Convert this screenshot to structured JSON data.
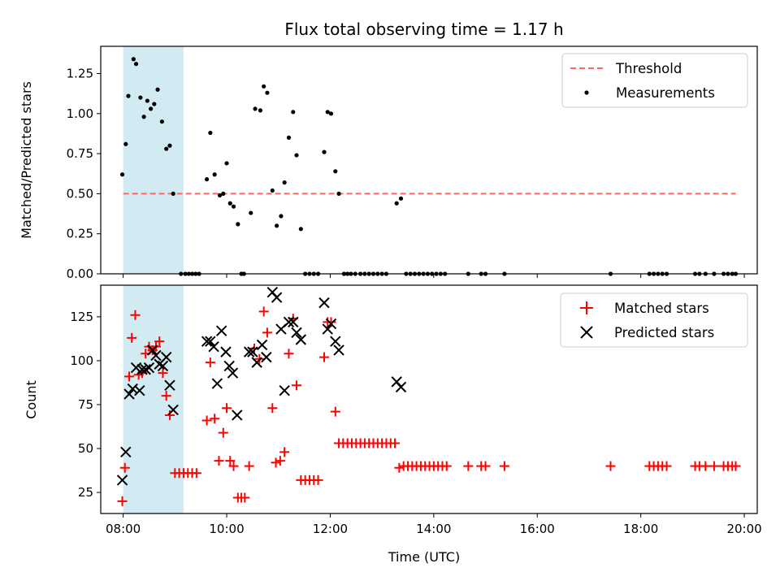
{
  "chart_data": [
    {
      "type": "scatter",
      "title": "Flux total observing time = 1.17 h",
      "xlabel": "",
      "ylabel": "Matched/Predicted stars",
      "xlim": [
        "07:34",
        "20:15"
      ],
      "ylim": [
        0,
        1.42
      ],
      "yticks": [
        "0.00",
        "0.25",
        "0.50",
        "0.75",
        "1.00",
        "1.25"
      ],
      "xticks": [
        "08:00",
        "10:00",
        "12:00",
        "14:00",
        "16:00",
        "18:00",
        "20:00"
      ],
      "grid": false,
      "legend_position": "top-right",
      "shaded_span": {
        "x": [
          "08:00",
          "09:10"
        ],
        "color": "#add8e6"
      },
      "threshold": {
        "name": "Threshold",
        "value": 0.5,
        "x": [
          "08:00",
          "19:50"
        ],
        "color": "#ff6666",
        "style": "dashed"
      },
      "series": [
        {
          "name": "Measurements",
          "color": "#000000",
          "marker": "dot",
          "points": [
            [
              "07:59",
              0.62
            ],
            [
              "08:03",
              0.81
            ],
            [
              "08:06",
              1.11
            ],
            [
              "08:12",
              1.34
            ],
            [
              "08:15",
              1.31
            ],
            [
              "08:20",
              1.1
            ],
            [
              "08:24",
              0.98
            ],
            [
              "08:28",
              1.08
            ],
            [
              "08:32",
              1.03
            ],
            [
              "08:36",
              1.06
            ],
            [
              "08:40",
              1.15
            ],
            [
              "08:45",
              0.95
            ],
            [
              "08:50",
              0.78
            ],
            [
              "08:54",
              0.8
            ],
            [
              "08:58",
              0.5
            ],
            [
              "09:07",
              0.0
            ],
            [
              "09:12",
              0.0
            ],
            [
              "09:16",
              0.0
            ],
            [
              "09:20",
              0.0
            ],
            [
              "09:24",
              0.0
            ],
            [
              "09:28",
              0.0
            ],
            [
              "09:37",
              0.59
            ],
            [
              "09:41",
              0.88
            ],
            [
              "09:46",
              0.62
            ],
            [
              "09:52",
              0.49
            ],
            [
              "09:56",
              0.5
            ],
            [
              "10:00",
              0.69
            ],
            [
              "10:04",
              0.44
            ],
            [
              "10:08",
              0.42
            ],
            [
              "10:13",
              0.31
            ],
            [
              "10:17",
              0.0
            ],
            [
              "10:20",
              0.0
            ],
            [
              "10:28",
              0.38
            ],
            [
              "10:33",
              1.03
            ],
            [
              "10:39",
              1.02
            ],
            [
              "10:43",
              1.17
            ],
            [
              "10:47",
              1.13
            ],
            [
              "10:53",
              0.52
            ],
            [
              "10:58",
              0.3
            ],
            [
              "11:03",
              0.36
            ],
            [
              "11:07",
              0.57
            ],
            [
              "11:12",
              0.85
            ],
            [
              "11:17",
              1.01
            ],
            [
              "11:21",
              0.74
            ],
            [
              "11:26",
              0.28
            ],
            [
              "11:31",
              0.0
            ],
            [
              "11:36",
              0.0
            ],
            [
              "11:41",
              0.0
            ],
            [
              "11:46",
              0.0
            ],
            [
              "11:53",
              0.76
            ],
            [
              "11:57",
              1.01
            ],
            [
              "12:01",
              1.0
            ],
            [
              "12:06",
              0.64
            ],
            [
              "12:10",
              0.5
            ],
            [
              "12:16",
              0.0
            ],
            [
              "12:20",
              0.0
            ],
            [
              "12:24",
              0.0
            ],
            [
              "12:29",
              0.0
            ],
            [
              "12:35",
              0.0
            ],
            [
              "12:40",
              0.0
            ],
            [
              "12:45",
              0.0
            ],
            [
              "12:50",
              0.0
            ],
            [
              "12:55",
              0.0
            ],
            [
              "13:00",
              0.0
            ],
            [
              "13:05",
              0.0
            ],
            [
              "13:17",
              0.44
            ],
            [
              "13:22",
              0.47
            ],
            [
              "13:28",
              0.0
            ],
            [
              "13:33",
              0.0
            ],
            [
              "13:38",
              0.0
            ],
            [
              "13:43",
              0.0
            ],
            [
              "13:48",
              0.0
            ],
            [
              "13:53",
              0.0
            ],
            [
              "13:58",
              0.0
            ],
            [
              "14:03",
              0.0
            ],
            [
              "14:08",
              0.0
            ],
            [
              "14:13",
              0.0
            ],
            [
              "14:40",
              0.0
            ],
            [
              "14:55",
              0.0
            ],
            [
              "15:00",
              0.0
            ],
            [
              "15:22",
              0.0
            ],
            [
              "17:25",
              0.0
            ],
            [
              "18:10",
              0.0
            ],
            [
              "18:15",
              0.0
            ],
            [
              "18:20",
              0.0
            ],
            [
              "18:25",
              0.0
            ],
            [
              "18:30",
              0.0
            ],
            [
              "19:03",
              0.0
            ],
            [
              "19:08",
              0.0
            ],
            [
              "19:15",
              0.0
            ],
            [
              "19:25",
              0.0
            ],
            [
              "19:36",
              0.0
            ],
            [
              "19:41",
              0.0
            ],
            [
              "19:46",
              0.0
            ],
            [
              "19:50",
              0.0
            ]
          ]
        }
      ]
    },
    {
      "type": "scatter",
      "title": "",
      "xlabel": "Time (UTC)",
      "ylabel": "Count",
      "xlim": [
        "07:34",
        "20:15"
      ],
      "ylim": [
        13,
        143
      ],
      "yticks": [
        "25",
        "50",
        "75",
        "100",
        "125"
      ],
      "xticks": [
        "08:00",
        "10:00",
        "12:00",
        "14:00",
        "16:00",
        "18:00",
        "20:00"
      ],
      "grid": false,
      "legend_position": "top-right",
      "shaded_span": {
        "x": [
          "08:00",
          "09:10"
        ],
        "color": "#add8e6"
      },
      "series": [
        {
          "name": "Matched stars",
          "color": "#ff0000",
          "marker": "plus",
          "points": [
            [
              "07:59",
              20
            ],
            [
              "08:02",
              39
            ],
            [
              "08:07",
              91
            ],
            [
              "08:10",
              113
            ],
            [
              "08:14",
              126
            ],
            [
              "08:18",
              92
            ],
            [
              "08:22",
              93
            ],
            [
              "08:26",
              104
            ],
            [
              "08:30",
              108
            ],
            [
              "08:34",
              106
            ],
            [
              "08:38",
              108
            ],
            [
              "08:42",
              111
            ],
            [
              "08:46",
              93
            ],
            [
              "08:50",
              80
            ],
            [
              "08:54",
              69
            ],
            [
              "09:00",
              36
            ],
            [
              "09:05",
              36
            ],
            [
              "09:10",
              36
            ],
            [
              "09:15",
              36
            ],
            [
              "09:20",
              36
            ],
            [
              "09:25",
              36
            ],
            [
              "09:37",
              66
            ],
            [
              "09:41",
              99
            ],
            [
              "09:46",
              67
            ],
            [
              "09:51",
              43
            ],
            [
              "09:56",
              59
            ],
            [
              "10:00",
              73
            ],
            [
              "10:04",
              43
            ],
            [
              "10:08",
              40
            ],
            [
              "10:13",
              22
            ],
            [
              "10:17",
              22
            ],
            [
              "10:21",
              22
            ],
            [
              "10:26",
              40
            ],
            [
              "10:32",
              107
            ],
            [
              "10:38",
              101
            ],
            [
              "10:43",
              128
            ],
            [
              "10:47",
              116
            ],
            [
              "10:53",
              73
            ],
            [
              "10:57",
              42
            ],
            [
              "11:02",
              43
            ],
            [
              "11:07",
              48
            ],
            [
              "11:12",
              104
            ],
            [
              "11:17",
              124
            ],
            [
              "11:21",
              86
            ],
            [
              "11:26",
              32
            ],
            [
              "11:31",
              32
            ],
            [
              "11:36",
              32
            ],
            [
              "11:41",
              32
            ],
            [
              "11:46",
              32
            ],
            [
              "11:53",
              102
            ],
            [
              "11:57",
              122
            ],
            [
              "12:01",
              122
            ],
            [
              "12:06",
              71
            ],
            [
              "12:10",
              53
            ],
            [
              "12:15",
              53
            ],
            [
              "12:20",
              53
            ],
            [
              "12:25",
              53
            ],
            [
              "12:30",
              53
            ],
            [
              "12:35",
              53
            ],
            [
              "12:40",
              53
            ],
            [
              "12:45",
              53
            ],
            [
              "12:50",
              53
            ],
            [
              "12:55",
              53
            ],
            [
              "13:00",
              53
            ],
            [
              "13:05",
              53
            ],
            [
              "13:10",
              53
            ],
            [
              "13:15",
              53
            ],
            [
              "13:20",
              39
            ],
            [
              "13:25",
              40
            ],
            [
              "13:30",
              40
            ],
            [
              "13:35",
              40
            ],
            [
              "13:40",
              40
            ],
            [
              "13:45",
              40
            ],
            [
              "13:50",
              40
            ],
            [
              "13:55",
              40
            ],
            [
              "14:00",
              40
            ],
            [
              "14:05",
              40
            ],
            [
              "14:10",
              40
            ],
            [
              "14:15",
              40
            ],
            [
              "14:40",
              40
            ],
            [
              "14:55",
              40
            ],
            [
              "15:00",
              40
            ],
            [
              "15:22",
              40
            ],
            [
              "17:25",
              40
            ],
            [
              "18:10",
              40
            ],
            [
              "18:15",
              40
            ],
            [
              "18:20",
              40
            ],
            [
              "18:25",
              40
            ],
            [
              "18:30",
              40
            ],
            [
              "19:03",
              40
            ],
            [
              "19:08",
              40
            ],
            [
              "19:15",
              40
            ],
            [
              "19:25",
              40
            ],
            [
              "19:36",
              40
            ],
            [
              "19:41",
              40
            ],
            [
              "19:46",
              40
            ],
            [
              "19:50",
              40
            ]
          ]
        },
        {
          "name": "Predicted stars",
          "color": "#000000",
          "marker": "x",
          "points": [
            [
              "07:59",
              32
            ],
            [
              "08:03",
              48
            ],
            [
              "08:07",
              81
            ],
            [
              "08:11",
              84
            ],
            [
              "08:15",
              96
            ],
            [
              "08:19",
              83
            ],
            [
              "08:22",
              95
            ],
            [
              "08:26",
              95
            ],
            [
              "08:30",
              96
            ],
            [
              "08:34",
              106
            ],
            [
              "08:38",
              103
            ],
            [
              "08:42",
              98
            ],
            [
              "08:46",
              97
            ],
            [
              "08:50",
              102
            ],
            [
              "08:54",
              86
            ],
            [
              "08:58",
              72
            ],
            [
              "09:37",
              111
            ],
            [
              "09:41",
              111
            ],
            [
              "09:45",
              108
            ],
            [
              "09:49",
              87
            ],
            [
              "09:54",
              117
            ],
            [
              "09:59",
              105
            ],
            [
              "10:03",
              97
            ],
            [
              "10:07",
              93
            ],
            [
              "10:12",
              69
            ],
            [
              "10:26",
              105
            ],
            [
              "10:30",
              105
            ],
            [
              "10:35",
              99
            ],
            [
              "10:41",
              109
            ],
            [
              "10:46",
              102
            ],
            [
              "10:53",
              139
            ],
            [
              "10:58",
              136
            ],
            [
              "11:03",
              118
            ],
            [
              "11:07",
              83
            ],
            [
              "11:12",
              122
            ],
            [
              "11:17",
              122
            ],
            [
              "11:21",
              116
            ],
            [
              "11:26",
              112
            ],
            [
              "11:53",
              133
            ],
            [
              "11:57",
              118
            ],
            [
              "12:01",
              121
            ],
            [
              "12:06",
              111
            ],
            [
              "12:10",
              106
            ],
            [
              "13:17",
              88
            ],
            [
              "13:22",
              85
            ]
          ]
        }
      ]
    }
  ]
}
